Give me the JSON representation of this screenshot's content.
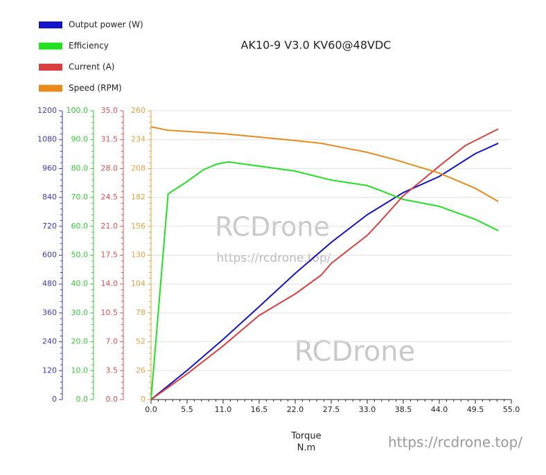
{
  "chart_data": {
    "type": "line",
    "title": "AK10-9 V3.0 KV60@48VDC",
    "x_label": "Torque",
    "x_unit": "N.m",
    "watermarks": [
      "RCDrone",
      "https://rcdrone.top/",
      "RCDrone",
      "https://rcdrone.top/"
    ],
    "xlim": [
      0,
      55
    ],
    "xticks": [
      {
        "value": 0,
        "label": "0.0"
      },
      5.5,
      {
        "value": 11,
        "label": "11.0"
      },
      16.5,
      {
        "value": 22,
        "label": "22.0"
      },
      27.5,
      {
        "value": 33,
        "label": "33.0"
      },
      38.5,
      {
        "value": 44,
        "label": "44.0"
      },
      49.5,
      {
        "value": 55,
        "label": "55.0"
      }
    ],
    "grid": true,
    "legend": "top-left",
    "series": [
      {
        "name": "Output power (W)",
        "color": "#1414c8",
        "axis_color": "#3a3ac8",
        "ylim": [
          0,
          1200
        ],
        "yticks": [
          0,
          120,
          240,
          360,
          480,
          600,
          720,
          840,
          960,
          1080,
          1200
        ],
        "x": [
          0,
          5.5,
          11,
          16.5,
          22,
          27.5,
          33,
          38.5,
          44,
          49.5,
          53
        ],
        "values": [
          0,
          121,
          250,
          386,
          524,
          653,
          768,
          860,
          927,
          1022,
          1065
        ]
      },
      {
        "name": "Efficiency",
        "color": "#22e022",
        "axis_color": "#33cc33",
        "ylim": [
          0,
          100
        ],
        "yticks": [
          {
            "value": 0,
            "label": "0.0"
          },
          {
            "value": 10,
            "label": "10.0"
          },
          {
            "value": 20,
            "label": "20.0"
          },
          {
            "value": 30,
            "label": "30.0"
          },
          {
            "value": 40,
            "label": "40.0"
          },
          {
            "value": 50,
            "label": "50.0"
          },
          {
            "value": 60,
            "label": "60.0"
          },
          {
            "value": 70,
            "label": "70.0"
          },
          {
            "value": 80,
            "label": "80.0"
          },
          {
            "value": 90,
            "label": "90.0"
          },
          {
            "value": 100,
            "label": "100.0"
          }
        ],
        "x": [
          0,
          2.6,
          5.5,
          8,
          10,
          11.8,
          15,
          22,
          27.5,
          33,
          35,
          38.5,
          44,
          49.5,
          53
        ],
        "values": [
          0,
          71.2,
          75.5,
          79.6,
          81.5,
          82.3,
          81.3,
          79.1,
          76.0,
          74.1,
          72.4,
          69.3,
          66.9,
          62.4,
          58.5
        ]
      },
      {
        "name": "Current (A)",
        "color": "#d84040",
        "axis_color": "#e05050",
        "ylim": [
          0,
          35
        ],
        "yticks": [
          {
            "value": 0,
            "label": "0.0"
          },
          3.5,
          {
            "value": 7,
            "label": "7.0"
          },
          10.5,
          {
            "value": 14,
            "label": "14.0"
          },
          17.5,
          {
            "value": 21,
            "label": "21.0"
          },
          24.5,
          {
            "value": 28,
            "label": "28.0"
          },
          31.5,
          {
            "value": 35,
            "label": "35.0"
          }
        ],
        "x": [
          0,
          5.5,
          11,
          16.5,
          22,
          26,
          27.5,
          33,
          35,
          38.5,
          44,
          48,
          53
        ],
        "values": [
          0,
          3.1,
          6.5,
          10.2,
          12.8,
          15.1,
          16.5,
          19.9,
          21.6,
          24.7,
          28.3,
          30.8,
          32.8
        ]
      },
      {
        "name": "Speed (RPM)",
        "color": "#e88a1c",
        "axis_color": "#e8a040",
        "ylim": [
          0,
          260
        ],
        "yticks": [
          0,
          26,
          52,
          78,
          104,
          130,
          156,
          182,
          208,
          234,
          260
        ],
        "x": [
          0,
          2.5,
          11,
          16.5,
          22,
          26,
          33,
          37,
          44,
          49.5,
          53
        ],
        "values": [
          245.6,
          242.5,
          239.4,
          236.3,
          233.2,
          230.7,
          222.6,
          216.4,
          203.9,
          190.2,
          178.3
        ]
      }
    ]
  }
}
